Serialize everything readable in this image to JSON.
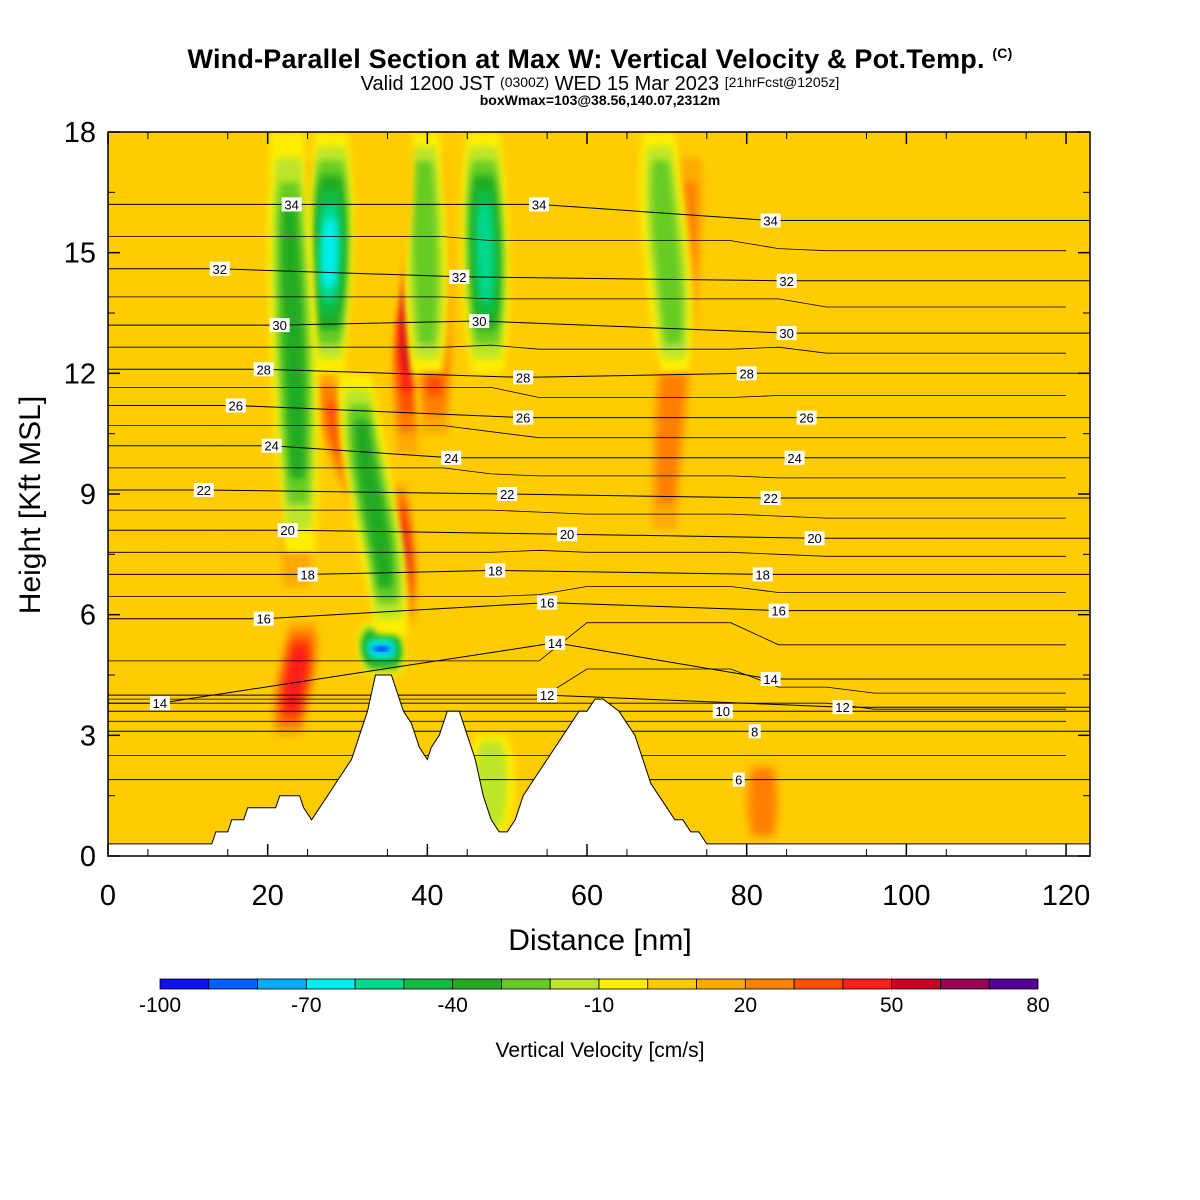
{
  "title": {
    "main": "Wind-Parallel Section at Max W: Vertical Velocity & Pot.Temp.",
    "copyright": "(C)",
    "valid_prefix": "Valid 1200 JST",
    "valid_utc": "(0300Z)",
    "valid_date": "WED 15 Mar 2023",
    "fcst": "[21hrFcst@1205z]",
    "box": "boxWmax=103@38.56,140.07,2312m"
  },
  "colorbar": {
    "title": "Vertical Velocity [cm/s]",
    "tick_labels": [
      "-100",
      "-70",
      "-40",
      "-10",
      "20",
      "50",
      "80"
    ],
    "levels": [
      -100,
      -90,
      -80,
      -70,
      -60,
      -50,
      -40,
      -30,
      -20,
      -10,
      0,
      10,
      20,
      30,
      40,
      50,
      60,
      70,
      80
    ],
    "colors": [
      "#1010f0",
      "#0060ff",
      "#00aaff",
      "#00eeee",
      "#00d88c",
      "#10bb44",
      "#22aa22",
      "#66cc22",
      "#bde52a",
      "#ffee00",
      "#ffcc00",
      "#ffaa00",
      "#ff7f00",
      "#ff5000",
      "#ff1e1e",
      "#cc0022",
      "#990055",
      "#550099"
    ]
  },
  "chart_data": {
    "type": "heatmap",
    "title": "Wind-Parallel Section at Max W: Vertical Velocity & Pot.Temp.",
    "xlabel": "Distance [nm]",
    "ylabel": "Height [Kft MSL]",
    "xlim": [
      0,
      123
    ],
    "ylim": [
      0,
      18
    ],
    "x_ticks": [
      0,
      20,
      40,
      60,
      80,
      100,
      120
    ],
    "y_ticks": [
      0,
      3,
      6,
      9,
      12,
      15,
      18
    ],
    "variable": "Vertical Velocity [cm/s]",
    "background_value": 0,
    "terrain_profile": {
      "x": [
        0,
        13,
        13.5,
        15,
        15.5,
        17,
        17.5,
        21,
        21.5,
        23,
        24,
        24.5,
        25.5,
        26.5,
        27.5,
        28.5,
        29.5,
        30.5,
        31.5,
        32.5,
        33.5,
        35.5,
        36,
        37,
        38,
        39,
        40,
        40.5,
        41.5,
        42.5,
        44,
        45,
        46,
        47,
        48,
        49,
        50,
        51,
        52,
        53,
        54,
        55,
        56,
        57,
        58,
        59,
        60,
        61,
        62,
        64,
        65,
        66,
        67,
        68,
        69,
        70,
        71,
        72,
        73,
        74,
        75,
        76,
        123
      ],
      "z": [
        0.3,
        0.3,
        0.6,
        0.6,
        0.9,
        0.9,
        1.2,
        1.2,
        1.5,
        1.5,
        1.5,
        1.2,
        0.9,
        1.2,
        1.5,
        1.8,
        2.1,
        2.4,
        3.0,
        3.6,
        4.5,
        4.5,
        4.2,
        3.6,
        3.3,
        2.7,
        2.4,
        2.7,
        3.0,
        3.6,
        3.6,
        3.0,
        2.4,
        1.5,
        0.9,
        0.6,
        0.6,
        0.9,
        1.5,
        1.8,
        2.1,
        2.4,
        2.7,
        3.0,
        3.3,
        3.6,
        3.6,
        3.9,
        3.9,
        3.6,
        3.3,
        3.0,
        2.4,
        1.8,
        1.5,
        1.2,
        0.9,
        0.9,
        0.6,
        0.6,
        0.3,
        0.3,
        0.3
      ]
    },
    "vertical_velocity_features": [
      {
        "x_bottom": 22.5,
        "x_top": 24.5,
        "z_bottom": 2.8,
        "z_top": 6.0,
        "peak_value": 55
      },
      {
        "x_bottom": 23.5,
        "x_top": 25.0,
        "z_bottom": 6.0,
        "z_top": 18.0,
        "peak_value": 50
      },
      {
        "x_bottom": 37.0,
        "x_top": 26.5,
        "z_bottom": 5.8,
        "z_top": 12.5,
        "peak_value": 45
      },
      {
        "x_bottom": 36.5,
        "x_top": 35.5,
        "z_bottom": 5.5,
        "z_top": 9.5,
        "peak_value": 75
      },
      {
        "x_bottom": 38.0,
        "x_top": 37.5,
        "z_bottom": 9.5,
        "z_top": 18.0,
        "peak_value": 60
      },
      {
        "x_bottom": 41.0,
        "x_top": 40.5,
        "z_bottom": 10.0,
        "z_top": 18.0,
        "peak_value": 45
      },
      {
        "x_bottom": 69.5,
        "x_top": 73.0,
        "z_bottom": 7.5,
        "z_top": 18.0,
        "peak_value": 30
      },
      {
        "x_bottom": 82.0,
        "x_top": 82.0,
        "z_bottom": 0.3,
        "z_top": 2.4,
        "peak_value": 30
      },
      {
        "x_bottom": 34.5,
        "x_top": 34.0,
        "z_bottom": 4.5,
        "z_top": 5.8,
        "peak_value": -100
      },
      {
        "x_bottom": 35.5,
        "x_top": 31.0,
        "z_bottom": 5.5,
        "z_top": 12.0,
        "peak_value": -40
      },
      {
        "x_bottom": 27.5,
        "x_top": 28.0,
        "z_bottom": 12.0,
        "z_top": 18.0,
        "peak_value": -70
      },
      {
        "x_bottom": 24.0,
        "x_top": 22.5,
        "z_bottom": 7.5,
        "z_top": 18.0,
        "peak_value": -40
      },
      {
        "x_bottom": 40.0,
        "x_top": 39.5,
        "z_bottom": 12.0,
        "z_top": 18.0,
        "peak_value": -30
      },
      {
        "x_bottom": 47.5,
        "x_top": 47.0,
        "z_bottom": 12.0,
        "z_top": 18.0,
        "peak_value": -60
      },
      {
        "x_bottom": 33.0,
        "x_top": 36.0,
        "z_bottom": 12.0,
        "z_top": 18.0,
        "peak_value": 15
      },
      {
        "x_bottom": 71.0,
        "x_top": 69.0,
        "z_bottom": 12.0,
        "z_top": 18.0,
        "peak_value": -30
      },
      {
        "x_bottom": 48.0,
        "x_top": 48.0,
        "z_bottom": 0.6,
        "z_top": 3.0,
        "peak_value": -25
      }
    ],
    "contour_variable": "Potential temperature",
    "contour_labels": [
      {
        "text": "34",
        "x": 23,
        "y": 16.2
      },
      {
        "text": "34",
        "x": 54,
        "y": 16.2
      },
      {
        "text": "34",
        "x": 83,
        "y": 15.8
      },
      {
        "text": "32",
        "x": 14,
        "y": 14.6
      },
      {
        "text": "32",
        "x": 44,
        "y": 14.4
      },
      {
        "text": "32",
        "x": 85,
        "y": 14.3
      },
      {
        "text": "30",
        "x": 21.5,
        "y": 13.2
      },
      {
        "text": "30",
        "x": 46.5,
        "y": 13.3
      },
      {
        "text": "30",
        "x": 85,
        "y": 13.0
      },
      {
        "text": "28",
        "x": 19.5,
        "y": 12.1
      },
      {
        "text": "28",
        "x": 52,
        "y": 11.9
      },
      {
        "text": "28",
        "x": 80,
        "y": 12.0
      },
      {
        "text": "26",
        "x": 16,
        "y": 11.2
      },
      {
        "text": "26",
        "x": 52,
        "y": 10.9
      },
      {
        "text": "26",
        "x": 87.5,
        "y": 10.9
      },
      {
        "text": "24",
        "x": 20.5,
        "y": 10.2
      },
      {
        "text": "24",
        "x": 43,
        "y": 9.9
      },
      {
        "text": "24",
        "x": 86,
        "y": 9.9
      },
      {
        "text": "22",
        "x": 12,
        "y": 9.1
      },
      {
        "text": "22",
        "x": 50,
        "y": 9.0
      },
      {
        "text": "22",
        "x": 83,
        "y": 8.9
      },
      {
        "text": "20",
        "x": 22.5,
        "y": 8.1
      },
      {
        "text": "20",
        "x": 57.5,
        "y": 8.0
      },
      {
        "text": "20",
        "x": 88.5,
        "y": 7.9
      },
      {
        "text": "18",
        "x": 25,
        "y": 7.0
      },
      {
        "text": "18",
        "x": 48.5,
        "y": 7.1
      },
      {
        "text": "18",
        "x": 82,
        "y": 7.0
      },
      {
        "text": "16",
        "x": 19.5,
        "y": 5.9
      },
      {
        "text": "16",
        "x": 55,
        "y": 6.3
      },
      {
        "text": "16",
        "x": 84,
        "y": 6.1
      },
      {
        "text": "14",
        "x": 6.5,
        "y": 3.8
      },
      {
        "text": "14",
        "x": 56,
        "y": 5.3
      },
      {
        "text": "14",
        "x": 83,
        "y": 4.4
      },
      {
        "text": "12",
        "x": 55,
        "y": 4.0
      },
      {
        "text": "12",
        "x": 92,
        "y": 3.7
      },
      {
        "text": "10",
        "x": 77,
        "y": 3.6
      },
      {
        "text": "8",
        "x": 81,
        "y": 3.1
      },
      {
        "text": "6",
        "x": 79,
        "y": 1.9
      }
    ]
  }
}
